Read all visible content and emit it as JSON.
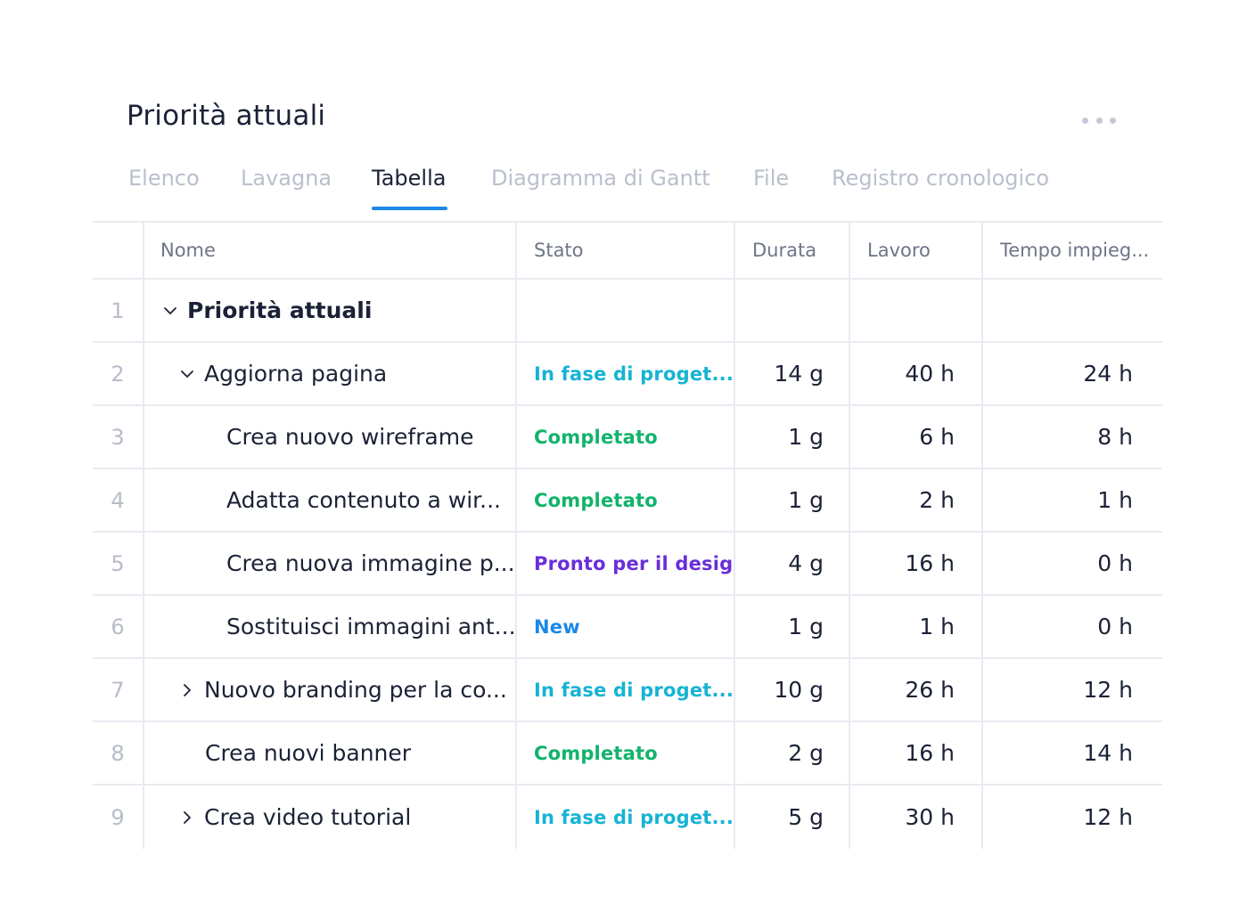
{
  "page": {
    "title": "Priorità attuali"
  },
  "tabs": [
    {
      "label": "Elenco",
      "active": false
    },
    {
      "label": "Lavagna",
      "active": false
    },
    {
      "label": "Tabella",
      "active": true
    },
    {
      "label": "Diagramma di Gantt",
      "active": false
    },
    {
      "label": "File",
      "active": false
    },
    {
      "label": "Registro cronologico",
      "active": false
    }
  ],
  "table": {
    "columns": [
      "Nome",
      "Stato",
      "Durata",
      "Lavoro",
      "Tempo impieg..."
    ],
    "rows": [
      {
        "num": "1",
        "name": "Priorità attuali",
        "chevron": "chevron-down",
        "status": "",
        "durata": "",
        "lavoro": "",
        "tempo": ""
      },
      {
        "num": "2",
        "name": "Aggiorna pagina",
        "chevron": "chevron-down",
        "status": "In fase di proget...",
        "status_color": "#16b3d4",
        "durata": "14 g",
        "lavoro": "40 h",
        "tempo": "24 h"
      },
      {
        "num": "3",
        "name": "Crea nuovo wireframe",
        "status": "Completato",
        "status_color": "#12b36b",
        "durata": "1 g",
        "lavoro": "6 h",
        "tempo": "8 h"
      },
      {
        "num": "4",
        "name": "Adatta contenuto a wir...",
        "status": "Completato",
        "status_color": "#12b36b",
        "durata": "1 g",
        "lavoro": "2 h",
        "tempo": "1 h"
      },
      {
        "num": "5",
        "name": "Crea nuova immagine p...",
        "status": "Pronto per il design",
        "status_color": "#6a2ed9",
        "durata": "4 g",
        "lavoro": "16 h",
        "tempo": "0 h"
      },
      {
        "num": "6",
        "name": "Sostituisci immagini ant...",
        "status": "New",
        "status_color": "#1b88e8",
        "durata": "1 g",
        "lavoro": "1 h",
        "tempo": "0 h"
      },
      {
        "num": "7",
        "name": "Nuovo branding per la co...",
        "chevron": "chevron-right",
        "status": "In fase di proget...",
        "status_color": "#16b3d4",
        "durata": "10 g",
        "lavoro": "26 h",
        "tempo": "12 h"
      },
      {
        "num": "8",
        "name": "Crea nuovi banner",
        "status": "Completato",
        "status_color": "#12b36b",
        "durata": "2 g",
        "lavoro": "16 h",
        "tempo": "14 h"
      },
      {
        "num": "9",
        "name": "Crea video tutorial",
        "chevron": "chevron-right",
        "status": "In fase di proget...",
        "status_color": "#16b3d4",
        "durata": "5 g",
        "lavoro": "30 h",
        "tempo": "12 h"
      }
    ]
  },
  "icons": {
    "more": "more-horizontal-icon"
  },
  "colors": {
    "accent": "#1b88e8",
    "grid_line": "#e8ebf1"
  }
}
